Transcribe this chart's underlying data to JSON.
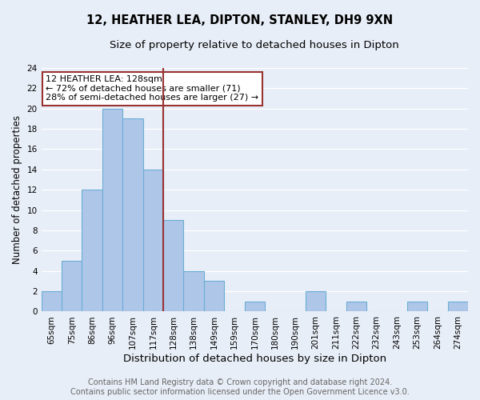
{
  "title": "12, HEATHER LEA, DIPTON, STANLEY, DH9 9XN",
  "subtitle": "Size of property relative to detached houses in Dipton",
  "xlabel": "Distribution of detached houses by size in Dipton",
  "ylabel": "Number of detached properties",
  "bar_labels": [
    "65sqm",
    "75sqm",
    "86sqm",
    "96sqm",
    "107sqm",
    "117sqm",
    "128sqm",
    "138sqm",
    "149sqm",
    "159sqm",
    "170sqm",
    "180sqm",
    "190sqm",
    "201sqm",
    "211sqm",
    "222sqm",
    "232sqm",
    "243sqm",
    "253sqm",
    "264sqm",
    "274sqm"
  ],
  "bar_values": [
    2,
    5,
    12,
    20,
    19,
    14,
    9,
    4,
    3,
    0,
    1,
    0,
    0,
    2,
    0,
    1,
    0,
    0,
    1,
    0,
    1
  ],
  "highlight_index": 6,
  "bar_color": "#aec6e8",
  "bar_edge_color": "#6aaed6",
  "highlight_line_color": "#993333",
  "ylim": [
    0,
    24
  ],
  "yticks": [
    0,
    2,
    4,
    6,
    8,
    10,
    12,
    14,
    16,
    18,
    20,
    22,
    24
  ],
  "annotation_title": "12 HEATHER LEA: 128sqm",
  "annotation_line1": "← 72% of detached houses are smaller (71)",
  "annotation_line2": "28% of semi-detached houses are larger (27) →",
  "annotation_box_color": "#ffffff",
  "annotation_box_edge": "#993333",
  "footer_line1": "Contains HM Land Registry data © Crown copyright and database right 2024.",
  "footer_line2": "Contains public sector information licensed under the Open Government Licence v3.0.",
  "background_color": "#e8eef7",
  "grid_color": "#ffffff",
  "title_fontsize": 10.5,
  "subtitle_fontsize": 9.5,
  "xlabel_fontsize": 9.5,
  "ylabel_fontsize": 8.5,
  "tick_fontsize": 7.5,
  "footer_fontsize": 7.0
}
